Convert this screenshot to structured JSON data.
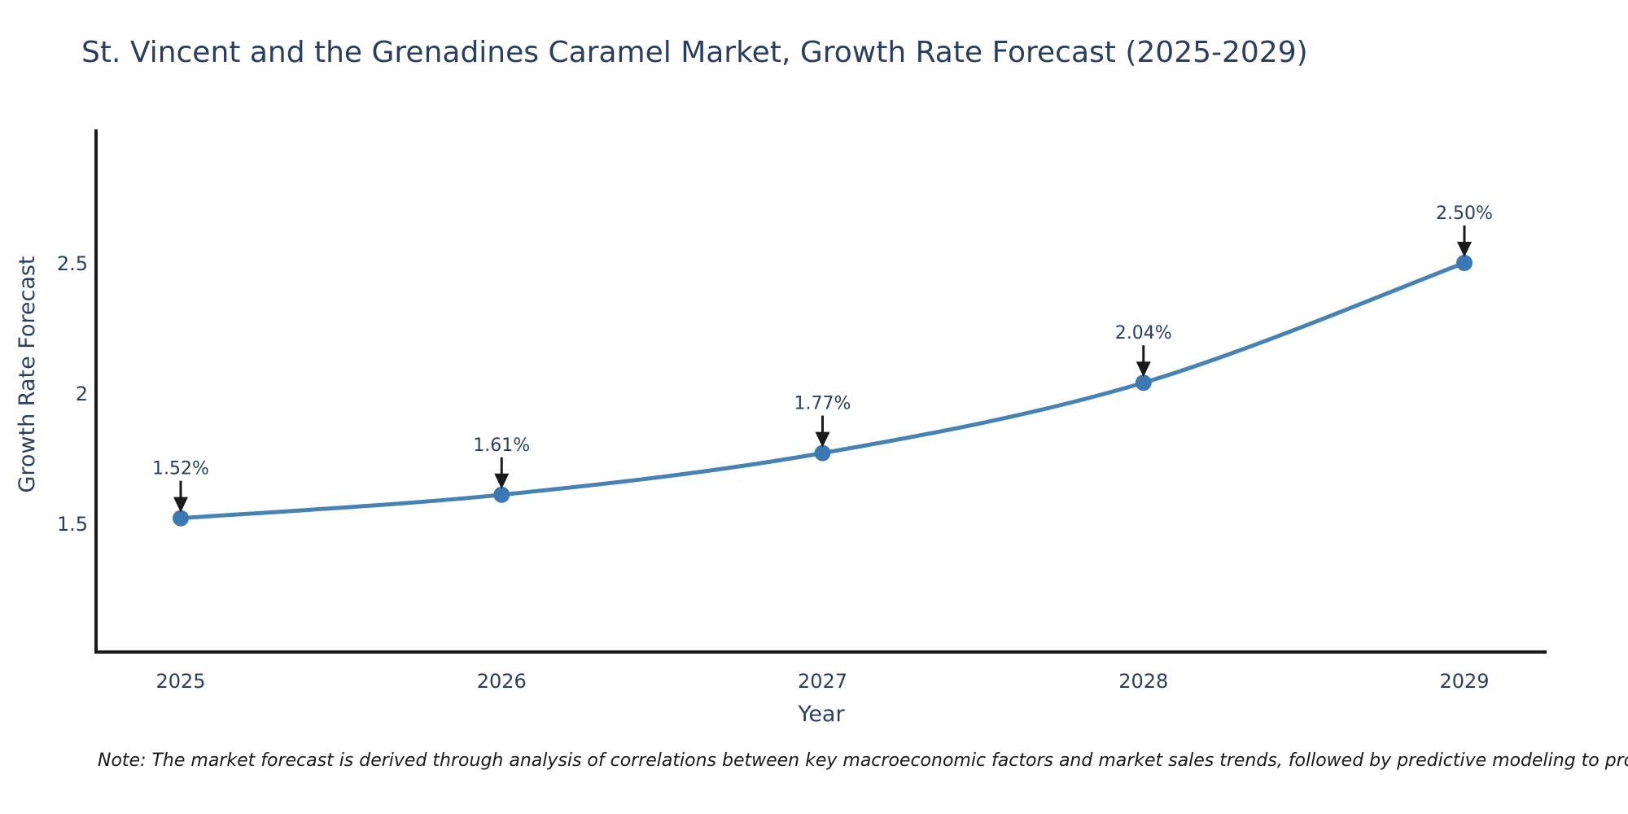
{
  "chart_data": {
    "type": "line",
    "title": "St. Vincent and the Grenadines Caramel Market, Growth Rate Forecast (2025-2029)",
    "xlabel": "Year",
    "ylabel": "Growth Rate Forecast",
    "x": [
      2025,
      2026,
      2027,
      2028,
      2029
    ],
    "series": [
      {
        "name": "Growth Rate Forecast",
        "values": [
          1.52,
          1.61,
          1.77,
          2.04,
          2.5
        ],
        "point_labels": [
          "1.52%",
          "1.61%",
          "1.77%",
          "2.04%",
          "2.50%"
        ]
      }
    ],
    "xtick_labels": [
      "2025",
      "2026",
      "2027",
      "2028",
      "2029"
    ],
    "ytick_values": [
      1.5,
      2,
      2.5
    ],
    "ytick_labels": [
      "1.5",
      "2",
      "2.5"
    ],
    "xlim": [
      2024.74,
      2029.26
    ],
    "ylim": [
      1.0,
      3.01
    ],
    "grid": false,
    "legend": false,
    "line_shape": "spline",
    "colors": {
      "line": "#4682b4",
      "marker": "#3c78b4",
      "axis": "#1a1a1a",
      "text": "#2a3f5f",
      "annotation_arrow": "#1a1a1a",
      "background": "#ffffff"
    }
  },
  "note": {
    "text": "Note: The market forecast is derived through analysis of correlations between key macroeconomic factors and market sales trends, followed by predictive modeling to project future sales"
  }
}
